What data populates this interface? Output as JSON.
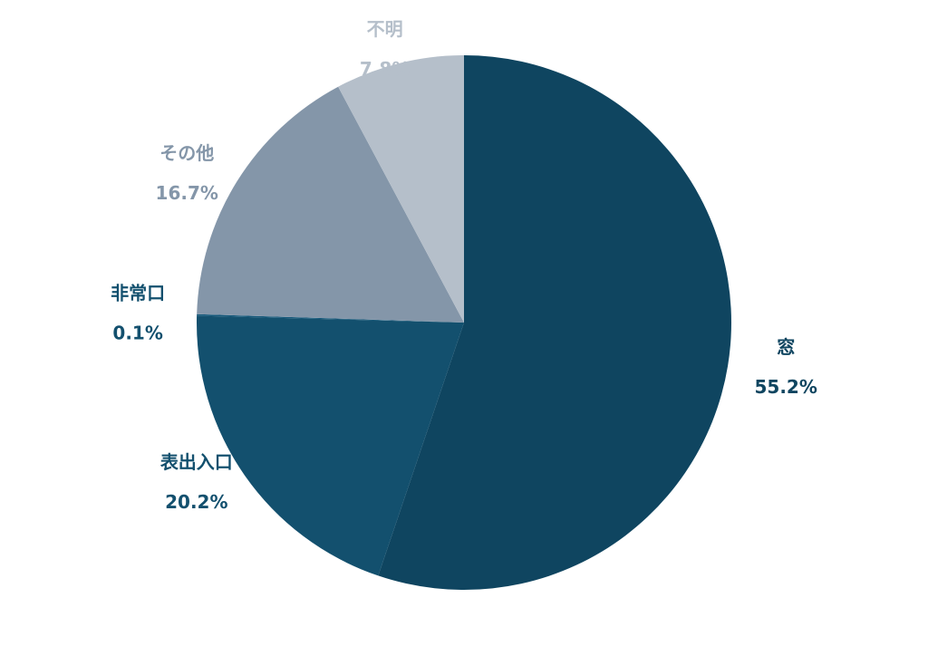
{
  "chart_data": {
    "type": "pie",
    "categories": [
      "窓",
      "表出入口",
      "非常口",
      "その他",
      "不明"
    ],
    "values": [
      55.2,
      20.2,
      0.1,
      16.7,
      7.8
    ],
    "value_labels": [
      "55.2%",
      "20.2%",
      "0.1%",
      "16.7%",
      "7.8%"
    ],
    "colors": [
      "#0f4560",
      "#13506e",
      "#15587a",
      "#8496a9",
      "#b5bfca"
    ],
    "label_colors": [
      "#0f4560",
      "#13506e",
      "#13506e",
      "#8496a9",
      "#b5bfca"
    ]
  }
}
